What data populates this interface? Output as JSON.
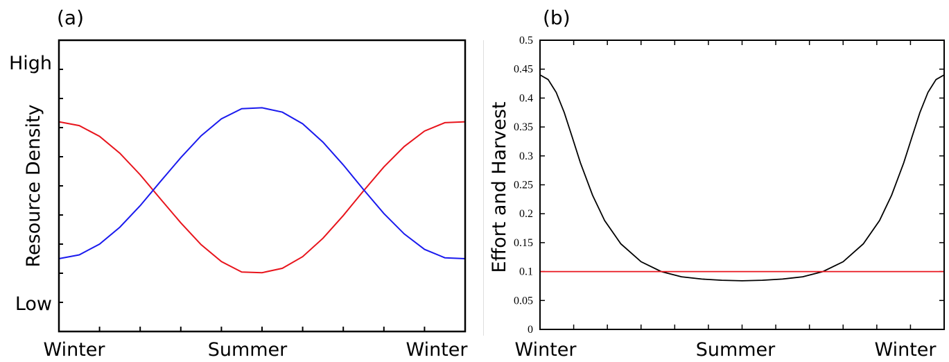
{
  "chart_data": [
    {
      "panel_label": "(a)",
      "type": "line",
      "ylabel": "Resource Density",
      "categories": [
        "Winter",
        "Summer",
        "Winter"
      ],
      "y_level_labels": [
        "High",
        "Low"
      ],
      "ylim": [
        0,
        1
      ],
      "y_levels": {
        "High": 0.9,
        "Low": 0.1
      },
      "grid": false,
      "series": [
        {
          "color": "#e8141c",
          "x": [
            0,
            0.05,
            0.1,
            0.15,
            0.2,
            0.25,
            0.3,
            0.35,
            0.4,
            0.45,
            0.5,
            0.55,
            0.6,
            0.65,
            0.7,
            0.75,
            0.8,
            0.85,
            0.9,
            0.95,
            1.0
          ],
          "values": [
            0.72,
            0.707,
            0.67,
            0.612,
            0.538,
            0.455,
            0.373,
            0.298,
            0.24,
            0.204,
            0.202,
            0.217,
            0.257,
            0.32,
            0.398,
            0.483,
            0.565,
            0.635,
            0.688,
            0.717,
            0.72
          ]
        },
        {
          "color": "#1a1aee",
          "x": [
            0,
            0.05,
            0.1,
            0.15,
            0.2,
            0.25,
            0.3,
            0.35,
            0.4,
            0.45,
            0.5,
            0.55,
            0.6,
            0.65,
            0.7,
            0.75,
            0.8,
            0.85,
            0.9,
            0.95,
            1.0
          ],
          "values": [
            0.25,
            0.263,
            0.3,
            0.358,
            0.432,
            0.515,
            0.597,
            0.672,
            0.73,
            0.765,
            0.768,
            0.753,
            0.713,
            0.65,
            0.572,
            0.487,
            0.405,
            0.335,
            0.282,
            0.253,
            0.25
          ]
        }
      ]
    },
    {
      "panel_label": "(b)",
      "type": "line",
      "ylabel": "Effort and Harvest",
      "categories": [
        "Winter",
        "Summer",
        "Winter"
      ],
      "ylim": [
        0,
        0.5
      ],
      "yticks": [
        "0",
        "0.05",
        "0.1",
        "0.15",
        "0.2",
        "0.25",
        "0.3",
        "0.35",
        "0.4",
        "0.45",
        "0.5"
      ],
      "grid": false,
      "series": [
        {
          "color": "#000000",
          "x": [
            0,
            0.02,
            0.04,
            0.06,
            0.08,
            0.1,
            0.13,
            0.16,
            0.2,
            0.25,
            0.3,
            0.35,
            0.4,
            0.45,
            0.5,
            0.55,
            0.6,
            0.65,
            0.7,
            0.75,
            0.8,
            0.84,
            0.87,
            0.9,
            0.92,
            0.94,
            0.96,
            0.98,
            1.0
          ],
          "values": [
            0.44,
            0.432,
            0.41,
            0.375,
            0.332,
            0.288,
            0.232,
            0.188,
            0.148,
            0.117,
            0.1,
            0.091,
            0.087,
            0.085,
            0.084,
            0.085,
            0.087,
            0.091,
            0.1,
            0.117,
            0.148,
            0.188,
            0.232,
            0.288,
            0.332,
            0.375,
            0.41,
            0.432,
            0.44
          ]
        },
        {
          "color": "#e8141c",
          "x": [
            0,
            1
          ],
          "values": [
            0.1,
            0.1
          ]
        }
      ]
    }
  ]
}
